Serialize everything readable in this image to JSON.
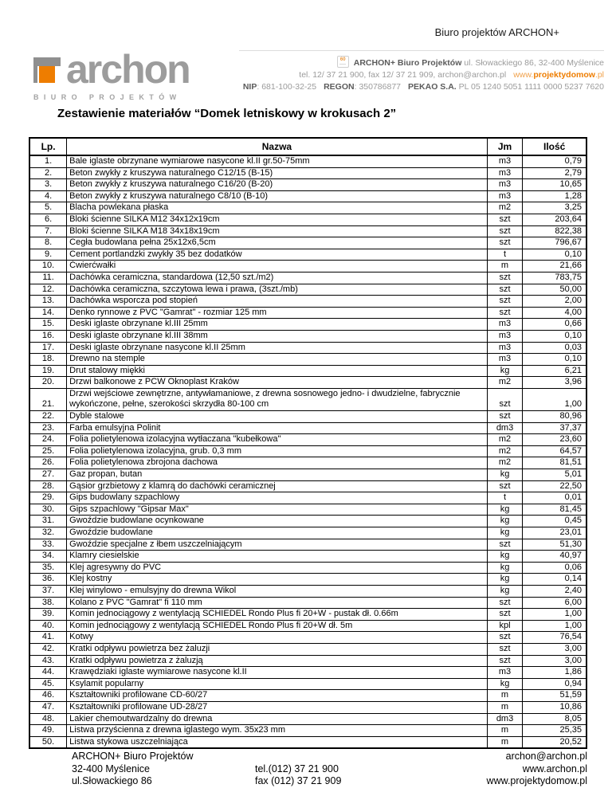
{
  "header": {
    "top_right": "Biuro projektów ARCHON+",
    "logo": {
      "word": "archon",
      "sub": "BIURO PROJEKTÓW"
    },
    "badge_text": "60",
    "contact": {
      "line1_bold": "ARCHON+ Biuro Projektów",
      "line1_rest": " ul. Słowackiego 86, 32-400 Myślenice",
      "line2_plain": "tel. 12/ 37 21 900, fax 12/ 37 21 909, archon@archon.pl",
      "line2_www_prefix": "www.",
      "line2_www_bold": "projektydomow",
      "line2_www_suffix": ".pl",
      "nip_label": "NIP",
      "nip_value": ": 681-100-32-25",
      "regon_label": "REGON",
      "regon_value": ": 350786877",
      "bank_label": "PEKAO S.A.",
      "bank_value": " PL 05 1240 5051 1111 0000 5237 7620"
    }
  },
  "title": "Zestawienie materiałów “Domek letniskowy w krokusach 2”",
  "table": {
    "columns": [
      "Lp.",
      "Nazwa",
      "Jm",
      "Ilość"
    ],
    "rows": [
      {
        "lp": "1.",
        "name": "Bale iglaste obrzynane wymiarowe nasycone kl.II gr.50-75mm",
        "unit": "m3",
        "qty": "0,79"
      },
      {
        "lp": "2.",
        "name": "Beton zwykły z kruszywa naturalnego C12/15 (B-15)",
        "unit": "m3",
        "qty": "2,79"
      },
      {
        "lp": "3.",
        "name": "Beton zwykły z kruszywa naturalnego C16/20 (B-20)",
        "unit": "m3",
        "qty": "10,65"
      },
      {
        "lp": "4.",
        "name": "Beton zwykły z kruszywa naturalnego C8/10 (B-10)",
        "unit": "m3",
        "qty": "1,28"
      },
      {
        "lp": "5.",
        "name": "Blacha powlekana płaska",
        "unit": "m2",
        "qty": "3,25"
      },
      {
        "lp": "6.",
        "name": "Bloki ścienne SILKA M12 34x12x19cm",
        "unit": "szt",
        "qty": "203,64"
      },
      {
        "lp": "7.",
        "name": "Bloki ścienne SILKA M18 34x18x19cm",
        "unit": "szt",
        "qty": "822,38"
      },
      {
        "lp": "8.",
        "name": "Cegła budowlana pełna 25x12x6,5cm",
        "unit": "szt",
        "qty": "796,67"
      },
      {
        "lp": "9.",
        "name": "Cement portlandzki zwykły 35 bez dodatków",
        "unit": "t",
        "qty": "0,10"
      },
      {
        "lp": "10.",
        "name": "Ćwierćwałki",
        "unit": "m",
        "qty": "21,66"
      },
      {
        "lp": "11.",
        "name": "Dachówka ceramiczna, standardowa (12,50 szt./m2)",
        "unit": "szt",
        "qty": "783,75"
      },
      {
        "lp": "12.",
        "name": "Dachówka ceramiczna, szczytowa lewa i prawa, (3szt./mb)",
        "unit": "szt",
        "qty": "50,00"
      },
      {
        "lp": "13.",
        "name": "Dachówka wsporcza pod stopień",
        "unit": "szt",
        "qty": "2,00"
      },
      {
        "lp": "14.",
        "name": "Denko rynnowe z PVC \"Gamrat\" - rozmiar 125 mm",
        "unit": "szt",
        "qty": "4,00"
      },
      {
        "lp": "15.",
        "name": "Deski iglaste obrzynane kl.III 25mm",
        "unit": "m3",
        "qty": "0,66"
      },
      {
        "lp": "16.",
        "name": "Deski iglaste obrzynane kl.III 38mm",
        "unit": "m3",
        "qty": "0,10"
      },
      {
        "lp": "17.",
        "name": "Deski iglaste obrzynane nasycone kl.II 25mm",
        "unit": "m3",
        "qty": "0,03"
      },
      {
        "lp": "18.",
        "name": "Drewno na stemple",
        "unit": "m3",
        "qty": "0,10"
      },
      {
        "lp": "19.",
        "name": "Drut stalowy miękki",
        "unit": "kg",
        "qty": "6,21"
      },
      {
        "lp": "20.",
        "name": "Drzwi balkonowe z PCW Oknoplast Kraków",
        "unit": "m2",
        "qty": "3,96"
      },
      {
        "lp": "21.",
        "name": "Drzwi wejściowe zewnętrzne, antywłamaniowe, z drewna sosnowego jedno- i dwudzielne, fabrycznie wykończone, pełne, szerokości skrzydła 80-100 cm",
        "unit": "szt",
        "qty": "1,00"
      },
      {
        "lp": "22.",
        "name": "Dyble stalowe",
        "unit": "szt",
        "qty": "80,96"
      },
      {
        "lp": "23.",
        "name": "Farba emulsyjna Polinit",
        "unit": "dm3",
        "qty": "37,37"
      },
      {
        "lp": "24.",
        "name": "Folia polietylenowa izolacyjna wytłaczana \"kubełkowa\"",
        "unit": "m2",
        "qty": "23,60"
      },
      {
        "lp": "25.",
        "name": "Folia polietylenowa izolacyjna, grub. 0,3 mm",
        "unit": "m2",
        "qty": "64,57"
      },
      {
        "lp": "26.",
        "name": "Folia polietylenowa zbrojona dachowa",
        "unit": "m2",
        "qty": "81,51"
      },
      {
        "lp": "27.",
        "name": "Gaz propan, butan",
        "unit": "kg",
        "qty": "5,01"
      },
      {
        "lp": "28.",
        "name": "Gąsior grzbietowy z klamrą do dachówki ceramicznej",
        "unit": "szt",
        "qty": "22,50"
      },
      {
        "lp": "29.",
        "name": "Gips budowlany szpachlowy",
        "unit": "t",
        "qty": "0,01"
      },
      {
        "lp": "30.",
        "name": "Gips szpachlowy \"Gipsar Max\"",
        "unit": "kg",
        "qty": "81,45"
      },
      {
        "lp": "31.",
        "name": "Gwoździe budowlane ocynkowane",
        "unit": "kg",
        "qty": "0,45"
      },
      {
        "lp": "32.",
        "name": "Gwoździe budowlane",
        "unit": "kg",
        "qty": "23,01"
      },
      {
        "lp": "33.",
        "name": "Gwoździe specjalne z łbem uszczelniającym",
        "unit": "szt",
        "qty": "51,30"
      },
      {
        "lp": "34.",
        "name": "Klamry ciesielskie",
        "unit": "kg",
        "qty": "40,97"
      },
      {
        "lp": "35.",
        "name": "Klej agresywny do PVC",
        "unit": "kg",
        "qty": "0,06"
      },
      {
        "lp": "36.",
        "name": "Klej kostny",
        "unit": "kg",
        "qty": "0,14"
      },
      {
        "lp": "37.",
        "name": "Klej winylowo - emulsyjny do drewna Wikol",
        "unit": "kg",
        "qty": "2,40"
      },
      {
        "lp": "38.",
        "name": "Kolano z PVC \"Gamrat\" fi 110 mm",
        "unit": "szt",
        "qty": "6,00"
      },
      {
        "lp": "39.",
        "name": "Komin jednociągowy z wentylacją SCHIEDEL Rondo Plus fi 20+W - pustak dł. 0.66m",
        "unit": "szt",
        "qty": "1,00"
      },
      {
        "lp": "40.",
        "name": "Komin jednociągowy z wentylacją SCHIEDEL Rondo Plus fi 20+W dł. 5m",
        "unit": "kpl",
        "qty": "1,00"
      },
      {
        "lp": "41.",
        "name": "Kotwy",
        "unit": "szt",
        "qty": "76,54"
      },
      {
        "lp": "42.",
        "name": "Kratki odpływu powietrza bez żaluzji",
        "unit": "szt",
        "qty": "3,00"
      },
      {
        "lp": "43.",
        "name": "Kratki odpływu powietrza z żaluzją",
        "unit": "szt",
        "qty": "3,00"
      },
      {
        "lp": "44.",
        "name": "Krawędziaki iglaste wymiarowe nasycone kl.II",
        "unit": "m3",
        "qty": "1,86"
      },
      {
        "lp": "45.",
        "name": "Ksylamit popularny",
        "unit": "kg",
        "qty": "0,94"
      },
      {
        "lp": "46.",
        "name": "Kształtowniki profilowane CD-60/27",
        "unit": "m",
        "qty": "51,59"
      },
      {
        "lp": "47.",
        "name": "Kształtowniki profilowane UD-28/27",
        "unit": "m",
        "qty": "10,86"
      },
      {
        "lp": "48.",
        "name": "Lakier chemoutwardzalny do drewna",
        "unit": "dm3",
        "qty": "8,05"
      },
      {
        "lp": "49.",
        "name": "Listwa przyścienna z drewna iglastego wym. 35x23 mm",
        "unit": "m",
        "qty": "25,35"
      },
      {
        "lp": "50.",
        "name": "Listwa stykowa uszczelniająca",
        "unit": "m",
        "qty": "20,52"
      }
    ]
  },
  "footer": {
    "left": [
      "ARCHON+ Biuro Projektów",
      "32-400 Myślenice",
      "ul.Słowackiego 86"
    ],
    "middle": [
      "tel.(012) 37 21 900",
      "fax (012) 37 21 909"
    ],
    "right": [
      "archon@archon.pl",
      "www.archon.pl",
      "www.projektydomow.pl"
    ]
  },
  "colors": {
    "accent_orange": "#ee7d00",
    "logo_gray": "#9c9c9c",
    "rule_gray": "#dcdcdc"
  }
}
